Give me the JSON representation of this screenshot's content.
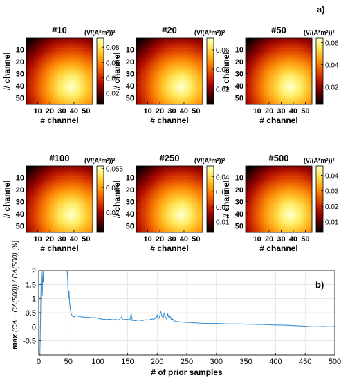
{
  "figure": {
    "panel_a_label": "a)",
    "panel_b_label": "b)"
  },
  "colormap": [
    "#000000",
    "#3a0000",
    "#7a0000",
    "#b01000",
    "#d83a00",
    "#f06a00",
    "#ff9a10",
    "#ffc830",
    "#fff070",
    "#ffffc8"
  ],
  "chart_data": [
    {
      "type": "heatmap",
      "title": "#10",
      "xlabel": "# channel",
      "ylabel": "# channel",
      "x_ticks": [
        "10",
        "20",
        "30",
        "40",
        "50"
      ],
      "y_ticks": [
        "10",
        "20",
        "30",
        "40",
        "50"
      ],
      "colorbar_label": "(V/(A*m²))²",
      "colorbar_ticks": [
        "0.08",
        "0.06",
        "0.04",
        "0.02"
      ],
      "colorbar_tick_values": [
        0.08,
        0.06,
        0.04,
        0.02
      ],
      "range": [
        0.005,
        0.092
      ],
      "peak": [
        37,
        40
      ]
    },
    {
      "type": "heatmap",
      "title": "#20",
      "xlabel": "# channel",
      "ylabel": "# channel",
      "x_ticks": [
        "10",
        "20",
        "30",
        "40",
        "50"
      ],
      "y_ticks": [
        "10",
        "20",
        "30",
        "40",
        "50"
      ],
      "colorbar_label": "(V/(A*m²))²",
      "colorbar_ticks": [
        "0.06",
        "0.04",
        "0.02"
      ],
      "colorbar_tick_values": [
        0.06,
        0.04,
        0.02
      ],
      "range": [
        0.004,
        0.072
      ],
      "peak": [
        37,
        40
      ]
    },
    {
      "type": "heatmap",
      "title": "#50",
      "xlabel": "# channel",
      "ylabel": "# channel",
      "x_ticks": [
        "10",
        "20",
        "30",
        "40",
        "50"
      ],
      "y_ticks": [
        "10",
        "20",
        "30",
        "40",
        "50"
      ],
      "colorbar_label": "(V/(A*m²))²",
      "colorbar_ticks": [
        "0.06",
        "0.04",
        "0.02"
      ],
      "colorbar_tick_values": [
        0.06,
        0.04,
        0.02
      ],
      "range": [
        0.004,
        0.064
      ],
      "peak": [
        37,
        40
      ]
    },
    {
      "type": "heatmap",
      "title": "#100",
      "xlabel": "# channel",
      "ylabel": "# channel",
      "x_ticks": [
        "10",
        "20",
        "30",
        "40",
        "50"
      ],
      "y_ticks": [
        "10",
        "20",
        "30",
        "40",
        "50"
      ],
      "colorbar_label": "(V/(A*m²))²",
      "colorbar_ticks": [
        "0.055",
        "0.04",
        "0.02"
      ],
      "colorbar_tick_values": [
        0.055,
        0.04,
        0.02
      ],
      "range": [
        0.004,
        0.057
      ],
      "peak": [
        37,
        40
      ]
    },
    {
      "type": "heatmap",
      "title": "#250",
      "xlabel": "# channel",
      "ylabel": "# channel",
      "x_ticks": [
        "10",
        "20",
        "30",
        "40",
        "50"
      ],
      "y_ticks": [
        "10",
        "20",
        "30",
        "40",
        "50"
      ],
      "colorbar_label": "(V/(A*m²))²",
      "colorbar_ticks": [
        "0.04",
        "0.03",
        "0.02",
        "0.01"
      ],
      "colorbar_tick_values": [
        0.04,
        0.03,
        0.02,
        0.01
      ],
      "range": [
        0.003,
        0.047
      ],
      "peak": [
        37,
        40
      ]
    },
    {
      "type": "heatmap",
      "title": "#500",
      "xlabel": "# channel",
      "ylabel": "# channel",
      "x_ticks": [
        "10",
        "20",
        "30",
        "40",
        "50"
      ],
      "y_ticks": [
        "10",
        "20",
        "30",
        "40",
        "50"
      ],
      "colorbar_label": "(V/(A*m²))²",
      "colorbar_ticks": [
        "0.04",
        "0.03",
        "0.02",
        "0.01"
      ],
      "colorbar_tick_values": [
        0.04,
        0.03,
        0.02,
        0.01
      ],
      "range": [
        0.003,
        0.046
      ],
      "peak": [
        37,
        40
      ]
    },
    {
      "type": "line",
      "xlabel": "# of prior samples",
      "ylabel_text": "max",
      "ylabel_expr": "(CΔ − CΔ(500)) / CΔ(500)",
      "ylabel_unit": "[%]",
      "xlim": [
        0,
        500
      ],
      "ylim": [
        -1,
        2
      ],
      "x_ticks": [
        0,
        50,
        100,
        150,
        200,
        250,
        300,
        350,
        400,
        450,
        500
      ],
      "y_ticks": [
        -1,
        -0.5,
        0,
        0.5,
        1,
        1.5,
        2
      ],
      "y_tick_labels": [
        "",
        "-0.5",
        "0",
        "0.5",
        "1",
        "1.5",
        "2"
      ],
      "grid": true,
      "series": [
        {
          "color": "#3a8fd0",
          "x": [
            2,
            3,
            4,
            5,
            6,
            7,
            8,
            9,
            10,
            11,
            12,
            14,
            16,
            18,
            20,
            22,
            25,
            28,
            30,
            33,
            36,
            40,
            43,
            46,
            48,
            49,
            50,
            51,
            52,
            53,
            54,
            55,
            57,
            60,
            63,
            66,
            70,
            75,
            80,
            85,
            90,
            95,
            100,
            105,
            110,
            115,
            120,
            125,
            130,
            135,
            138,
            140,
            142,
            145,
            150,
            153,
            155,
            156,
            158,
            160,
            163,
            166,
            170,
            175,
            180,
            185,
            190,
            195,
            198,
            200,
            202,
            204,
            206,
            208,
            210,
            212,
            214,
            216,
            218,
            220,
            222,
            224,
            226,
            228,
            230,
            235,
            240,
            245,
            250,
            255,
            260,
            270,
            280,
            290,
            300,
            310,
            320,
            330,
            340,
            350,
            360,
            370,
            380,
            390,
            400,
            410,
            420,
            430,
            440,
            450,
            455,
            460,
            470,
            480,
            490,
            495,
            498,
            500
          ],
          "y": [
            -1.0,
            0.3,
            1.5,
            2.0,
            1.1,
            2.0,
            1.6,
            2.0,
            2.0,
            2.0,
            2.0,
            2.0,
            2.0,
            2.0,
            2.0,
            2.0,
            2.0,
            2.0,
            2.0,
            2.0,
            2.0,
            2.0,
            2.0,
            2.0,
            2.0,
            1.7,
            1.0,
            1.3,
            0.9,
            0.7,
            0.55,
            0.45,
            0.38,
            0.35,
            0.4,
            0.38,
            0.36,
            0.35,
            0.33,
            0.34,
            0.32,
            0.33,
            0.3,
            0.28,
            0.27,
            0.26,
            0.27,
            0.25,
            0.26,
            0.24,
            0.3,
            0.35,
            0.25,
            0.26,
            0.27,
            0.24,
            0.3,
            0.48,
            0.22,
            0.23,
            0.22,
            0.23,
            0.24,
            0.22,
            0.25,
            0.24,
            0.27,
            0.28,
            0.3,
            0.42,
            0.28,
            0.35,
            0.55,
            0.4,
            0.3,
            0.5,
            0.35,
            0.28,
            0.45,
            0.32,
            0.38,
            0.25,
            0.28,
            0.22,
            0.2,
            0.18,
            0.17,
            0.16,
            0.15,
            0.15,
            0.14,
            0.13,
            0.12,
            0.12,
            0.12,
            0.11,
            0.1,
            0.1,
            0.1,
            0.09,
            0.09,
            0.08,
            0.08,
            0.07,
            0.06,
            0.06,
            0.05,
            0.04,
            0.03,
            0.02,
            0.01,
            0.0,
            0.0,
            0.01,
            0.0,
            0.0,
            0.01,
            0.0
          ]
        }
      ]
    }
  ]
}
